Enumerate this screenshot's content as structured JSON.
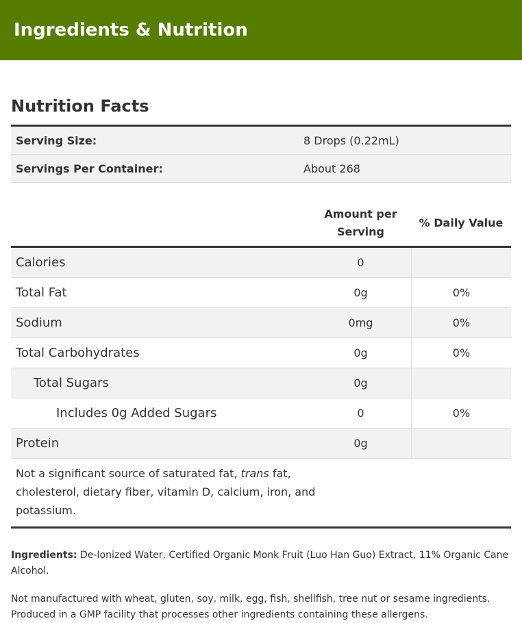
{
  "header": {
    "title": "Ingredients & Nutrition"
  },
  "nutrition": {
    "title": "Nutrition Facts",
    "serving": [
      {
        "label": "Serving Size:",
        "value": "8 Drops (0.22mL)"
      },
      {
        "label": "Servings Per Container:",
        "value": "About 268"
      }
    ],
    "columns": {
      "amount": "Amount per Serving",
      "daily_value": "% Daily Value"
    },
    "rows": [
      {
        "name": "Calories",
        "amount": "0",
        "dv": ""
      },
      {
        "name": "Total Fat",
        "amount": "0g",
        "dv": "0%"
      },
      {
        "name": "Sodium",
        "amount": "0mg",
        "dv": "0%"
      },
      {
        "name": "Total Carbohydrates",
        "amount": "0g",
        "dv": "0%"
      },
      {
        "name": "Total Sugars",
        "amount": "0g",
        "dv": ""
      },
      {
        "name": "Includes 0g Added Sugars",
        "amount": "0",
        "dv": "0%"
      },
      {
        "name": "Protein",
        "amount": "0g",
        "dv": ""
      }
    ],
    "footnote": {
      "before": "Not a significant source of saturated fat, ",
      "italic": "trans",
      "after": " fat, cholesterol, dietary fiber, vitamin D, calcium, iron, and potassium."
    }
  },
  "ingredients": {
    "label": "Ingredients:",
    "text": " De-Ionized Water, Certified Organic Monk Fruit (Luo Han Guo) Extract, 11% Organic Cane Alcohol."
  },
  "allergens": {
    "text": "Not manufactured with wheat, gluten, soy, milk, egg, fish, shellfish, tree nut or sesame ingredients. Produced in a GMP facility that processes other ingredients containing these allergens."
  },
  "colors": {
    "header_bg": "#567c00",
    "header_text": "#ffffff"
  }
}
